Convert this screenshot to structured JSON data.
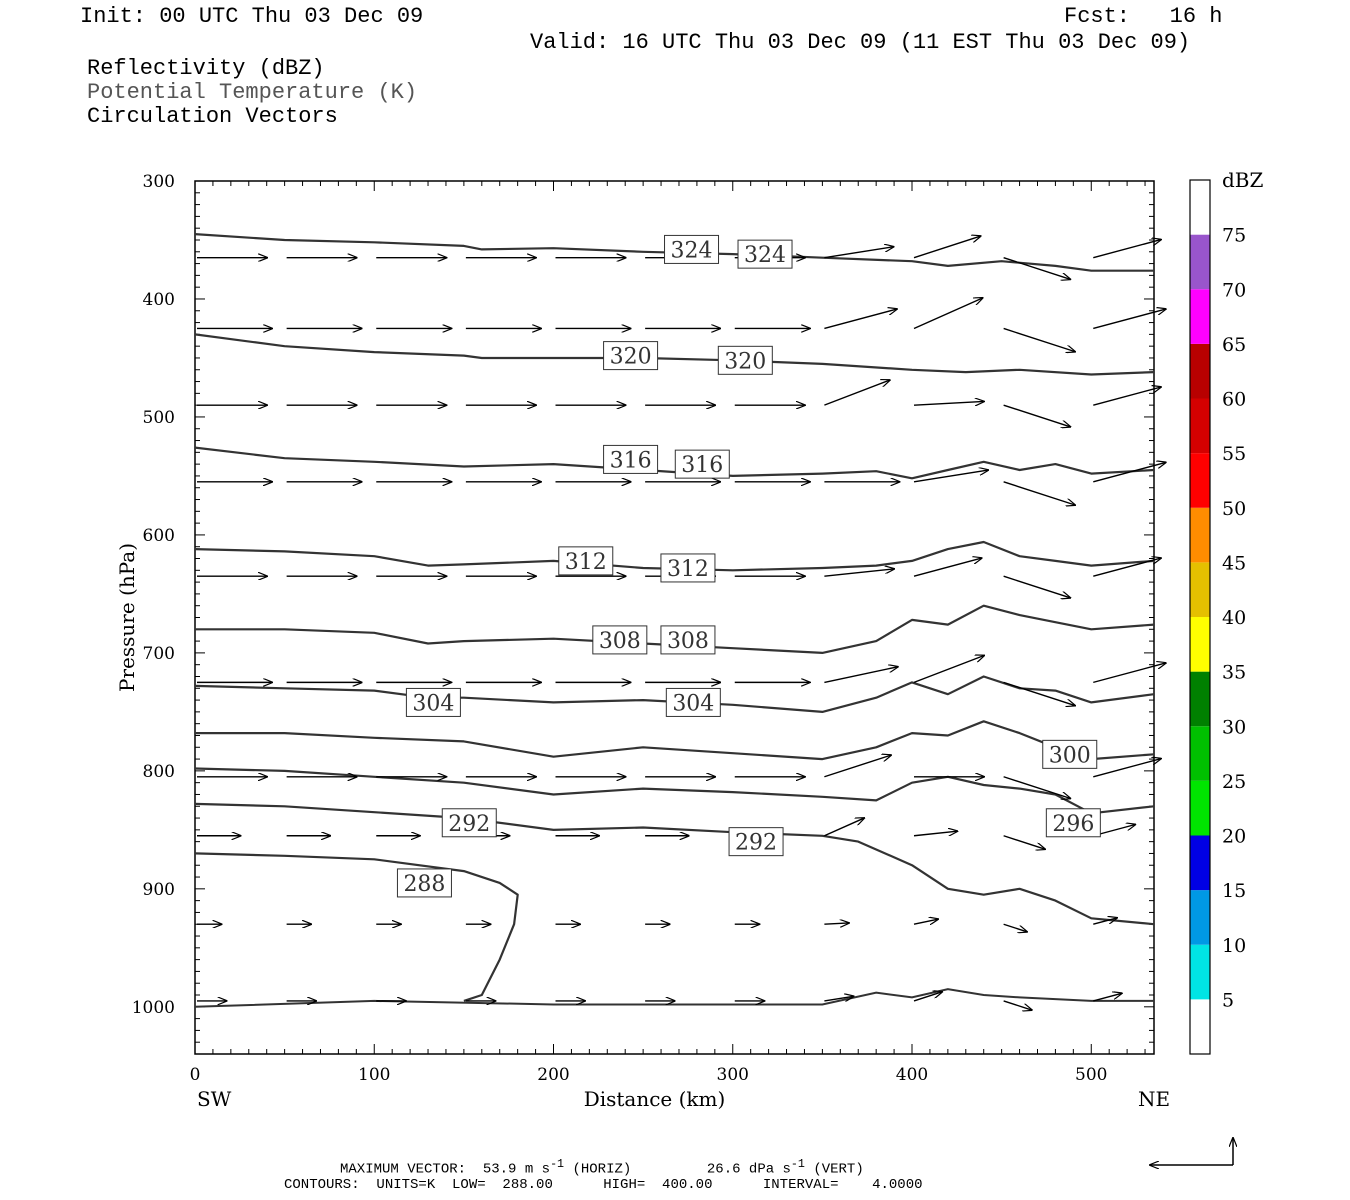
{
  "header": {
    "init": "Init: 00 UTC Thu 03 Dec 09",
    "fcst": "Fcst:   16 h",
    "valid": "Valid: 16 UTC Thu 03 Dec 09 (11 EST Thu 03 Dec 09)",
    "field1": "Reflectivity (dBZ)",
    "field2": "Potential Temperature (K)",
    "field3": "Circulation Vectors"
  },
  "footer": {
    "vector_label": "MAXIMUM VECTOR:",
    "horiz_value": "53.9 m s",
    "horiz_unit": "(HORIZ)",
    "vert_value": "26.6 dPa s",
    "vert_unit": "(VERT)",
    "exp": "-1",
    "contours": "CONTOURS:  UNITS=K  LOW=  288.00      HIGH=  400.00      INTERVAL=    4.0000"
  },
  "chart_data": {
    "type": "contour",
    "xlabel": "Distance (km)",
    "ylabel": "Pressure (hPa)",
    "x_ticks": [
      0,
      100,
      200,
      300,
      400,
      500
    ],
    "y_ticks": [
      300,
      400,
      500,
      600,
      700,
      800,
      900,
      1000
    ],
    "xlim": [
      0,
      535
    ],
    "ylim": [
      1040,
      300
    ],
    "x_end_labels": {
      "left": "SW",
      "right": "NE"
    },
    "contour_lines": [
      {
        "label": "324",
        "points": [
          [
            0,
            345
          ],
          [
            50,
            350
          ],
          [
            100,
            352
          ],
          [
            150,
            355
          ],
          [
            160,
            358
          ],
          [
            200,
            357
          ],
          [
            250,
            360
          ],
          [
            300,
            362
          ],
          [
            350,
            365
          ],
          [
            400,
            368
          ],
          [
            420,
            372
          ],
          [
            450,
            368
          ],
          [
            480,
            372
          ],
          [
            500,
            376
          ],
          [
            535,
            376
          ]
        ]
      },
      {
        "label": "320",
        "points": [
          [
            0,
            430
          ],
          [
            50,
            440
          ],
          [
            100,
            445
          ],
          [
            150,
            448
          ],
          [
            160,
            450
          ],
          [
            200,
            450
          ],
          [
            250,
            450
          ],
          [
            300,
            452
          ],
          [
            350,
            455
          ],
          [
            400,
            460
          ],
          [
            430,
            462
          ],
          [
            460,
            460
          ],
          [
            500,
            464
          ],
          [
            535,
            462
          ]
        ]
      },
      {
        "label": "316",
        "points": [
          [
            0,
            526
          ],
          [
            50,
            535
          ],
          [
            100,
            538
          ],
          [
            150,
            542
          ],
          [
            200,
            540
          ],
          [
            250,
            545
          ],
          [
            300,
            550
          ],
          [
            350,
            548
          ],
          [
            380,
            546
          ],
          [
            400,
            552
          ],
          [
            420,
            545
          ],
          [
            440,
            538
          ],
          [
            460,
            545
          ],
          [
            480,
            540
          ],
          [
            500,
            548
          ],
          [
            535,
            545
          ]
        ]
      },
      {
        "label": "312",
        "points": [
          [
            0,
            612
          ],
          [
            50,
            614
          ],
          [
            100,
            618
          ],
          [
            130,
            626
          ],
          [
            150,
            625
          ],
          [
            200,
            622
          ],
          [
            250,
            628
          ],
          [
            300,
            630
          ],
          [
            350,
            628
          ],
          [
            380,
            626
          ],
          [
            400,
            622
          ],
          [
            420,
            612
          ],
          [
            440,
            606
          ],
          [
            460,
            618
          ],
          [
            480,
            622
          ],
          [
            500,
            626
          ],
          [
            535,
            622
          ]
        ]
      },
      {
        "label": "308",
        "points": [
          [
            0,
            680
          ],
          [
            50,
            680
          ],
          [
            100,
            683
          ],
          [
            130,
            692
          ],
          [
            150,
            690
          ],
          [
            200,
            688
          ],
          [
            250,
            692
          ],
          [
            300,
            696
          ],
          [
            350,
            700
          ],
          [
            380,
            690
          ],
          [
            400,
            672
          ],
          [
            420,
            676
          ],
          [
            440,
            660
          ],
          [
            460,
            668
          ],
          [
            480,
            674
          ],
          [
            500,
            680
          ],
          [
            535,
            676
          ]
        ]
      },
      {
        "label": "304",
        "points": [
          [
            0,
            728
          ],
          [
            50,
            730
          ],
          [
            100,
            732
          ],
          [
            130,
            738
          ],
          [
            150,
            738
          ],
          [
            200,
            742
          ],
          [
            250,
            740
          ],
          [
            300,
            744
          ],
          [
            350,
            750
          ],
          [
            380,
            738
          ],
          [
            400,
            725
          ],
          [
            420,
            735
          ],
          [
            440,
            720
          ],
          [
            460,
            730
          ],
          [
            480,
            732
          ],
          [
            500,
            742
          ],
          [
            535,
            735
          ]
        ]
      },
      {
        "label": "300",
        "points": [
          [
            0,
            768
          ],
          [
            50,
            768
          ],
          [
            100,
            772
          ],
          [
            150,
            775
          ],
          [
            200,
            788
          ],
          [
            250,
            780
          ],
          [
            300,
            785
          ],
          [
            350,
            790
          ],
          [
            380,
            780
          ],
          [
            400,
            768
          ],
          [
            420,
            770
          ],
          [
            440,
            758
          ],
          [
            460,
            768
          ],
          [
            480,
            780
          ],
          [
            500,
            790
          ],
          [
            535,
            786
          ]
        ]
      },
      {
        "label": "296",
        "points": [
          [
            0,
            798
          ],
          [
            50,
            800
          ],
          [
            100,
            805
          ],
          [
            150,
            810
          ],
          [
            200,
            820
          ],
          [
            250,
            815
          ],
          [
            300,
            818
          ],
          [
            350,
            822
          ],
          [
            380,
            825
          ],
          [
            400,
            810
          ],
          [
            420,
            805
          ],
          [
            440,
            812
          ],
          [
            460,
            815
          ],
          [
            480,
            820
          ],
          [
            500,
            836
          ],
          [
            535,
            830
          ]
        ]
      },
      {
        "label": "292",
        "points": [
          [
            0,
            828
          ],
          [
            50,
            830
          ],
          [
            100,
            835
          ],
          [
            150,
            840
          ],
          [
            200,
            850
          ],
          [
            250,
            848
          ],
          [
            300,
            852
          ],
          [
            350,
            855
          ],
          [
            370,
            860
          ],
          [
            400,
            880
          ],
          [
            420,
            900
          ],
          [
            440,
            905
          ],
          [
            460,
            900
          ],
          [
            480,
            910
          ],
          [
            500,
            925
          ],
          [
            535,
            930
          ]
        ]
      },
      {
        "label": "288",
        "points": [
          [
            0,
            870
          ],
          [
            50,
            872
          ],
          [
            100,
            875
          ],
          [
            150,
            885
          ],
          [
            170,
            895
          ],
          [
            180,
            905
          ],
          [
            178,
            930
          ],
          [
            170,
            960
          ],
          [
            160,
            990
          ],
          [
            150,
            995
          ]
        ]
      }
    ],
    "contour_labels": [
      {
        "text": "324",
        "x": 277,
        "y": 358
      },
      {
        "text": "324",
        "x": 318,
        "y": 362
      },
      {
        "text": "320",
        "x": 243,
        "y": 448
      },
      {
        "text": "320",
        "x": 307,
        "y": 452
      },
      {
        "text": "316",
        "x": 243,
        "y": 536
      },
      {
        "text": "316",
        "x": 283,
        "y": 540
      },
      {
        "text": "312",
        "x": 218,
        "y": 622
      },
      {
        "text": "312",
        "x": 275,
        "y": 628
      },
      {
        "text": "308",
        "x": 237,
        "y": 689
      },
      {
        "text": "308",
        "x": 275,
        "y": 689
      },
      {
        "text": "304",
        "x": 133,
        "y": 742
      },
      {
        "text": "304",
        "x": 278,
        "y": 742
      },
      {
        "text": "300",
        "x": 488,
        "y": 786
      },
      {
        "text": "296",
        "x": 490,
        "y": 844
      },
      {
        "text": "292",
        "x": 153,
        "y": 844
      },
      {
        "text": "292",
        "x": 313,
        "y": 860
      },
      {
        "text": "288",
        "x": 128,
        "y": 895
      }
    ],
    "vector_rows_hpa": [
      365,
      425,
      490,
      555,
      635,
      725,
      805,
      855,
      930,
      995
    ],
    "vector_columns_km": [
      0,
      50,
      100,
      150,
      200,
      250,
      300,
      350,
      400,
      450,
      500
    ],
    "colorbar": {
      "label": "dBZ",
      "levels": [
        5,
        10,
        15,
        20,
        25,
        30,
        35,
        40,
        45,
        50,
        55,
        60,
        65,
        70,
        75
      ],
      "colors": [
        "#ffffff",
        "#00e5e5",
        "#0099e5",
        "#0000e5",
        "#00e500",
        "#00c000",
        "#008000",
        "#ffff00",
        "#e5c000",
        "#ff8c00",
        "#ff0000",
        "#d40000",
        "#b80000",
        "#ff00ff",
        "#9955cc",
        "#ffffff"
      ]
    }
  }
}
